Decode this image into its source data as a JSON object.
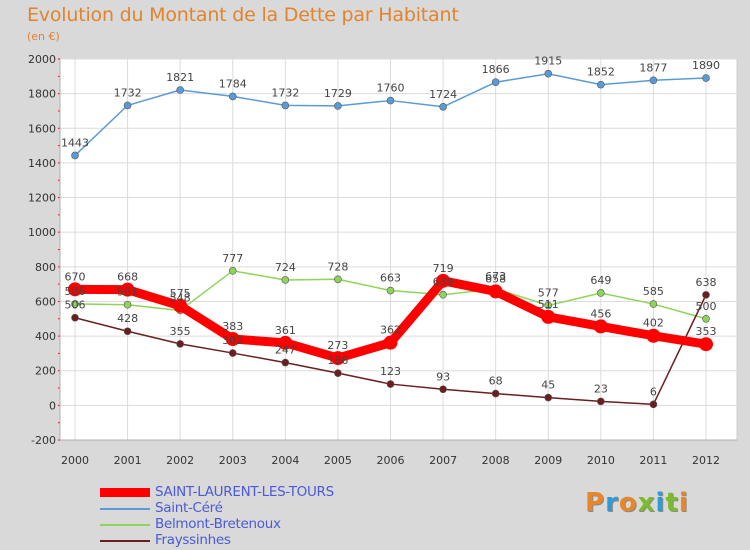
{
  "header": {
    "title": "Evolution du Montant de la Dette par Habitant",
    "subtitle": "(en €)"
  },
  "brand": {
    "text": "Proxiti",
    "colors": [
      "#e8862a",
      "#2f9bd6",
      "#e8862a",
      "#7dbb2e",
      "#2f9bd6",
      "#7dbb2e",
      "#e8862a"
    ]
  },
  "chart_data": {
    "type": "line",
    "x": [
      "2000",
      "2001",
      "2002",
      "2003",
      "2004",
      "2005",
      "2006",
      "2007",
      "2008",
      "2009",
      "2010",
      "2011",
      "2012"
    ],
    "ylim": [
      -200,
      2000
    ],
    "yticks": [
      "-200",
      "0",
      "200",
      "400",
      "600",
      "800",
      "1000",
      "1200",
      "1400",
      "1600",
      "1800",
      "2000"
    ],
    "grid": true,
    "legend_position": "bottom-left",
    "series": [
      {
        "name": "Saint-Céré",
        "color": "#5b9bd5",
        "values": [
          1443,
          1732,
          1821,
          1784,
          1732,
          1729,
          1760,
          1724,
          1866,
          1915,
          1852,
          1877,
          1890
        ],
        "labels": [
          "1443",
          "1732",
          "1821",
          "1784",
          "1732",
          "1729",
          "1760",
          "1724",
          "1866",
          "1915",
          "1852",
          "1877",
          "1890"
        ]
      },
      {
        "name": "Belmont-Bretenoux",
        "color": "#8fd45a",
        "values": [
          586,
          581,
          548,
          777,
          724,
          728,
          663,
          639,
          673,
          577,
          649,
          585,
          500
        ],
        "labels": [
          "586",
          "581",
          "548",
          "777",
          "724",
          "728",
          "663",
          "639",
          "673",
          "577",
          "649",
          "585",
          "500"
        ]
      },
      {
        "name": "Frayssinhes",
        "color": "#6b1e1e",
        "values": [
          506,
          428,
          355,
          302,
          247,
          186,
          123,
          93,
          68,
          45,
          23,
          6,
          638
        ],
        "labels": [
          "506",
          "428",
          "355",
          "302",
          "247",
          "186",
          "123",
          "93",
          "68",
          "45",
          "23",
          "6",
          "638"
        ]
      },
      {
        "name": "SAINT-LAURENT-LES-TOURS",
        "color": "#ff0000",
        "highlight": true,
        "values": [
          670,
          668,
          575,
          383,
          361,
          273,
          362,
          719,
          658,
          511,
          456,
          402,
          353
        ],
        "labels": [
          "670",
          "668",
          "575",
          "383",
          "361",
          "273",
          "362",
          "719",
          "658",
          "511",
          "456",
          "402",
          "353"
        ]
      }
    ]
  }
}
